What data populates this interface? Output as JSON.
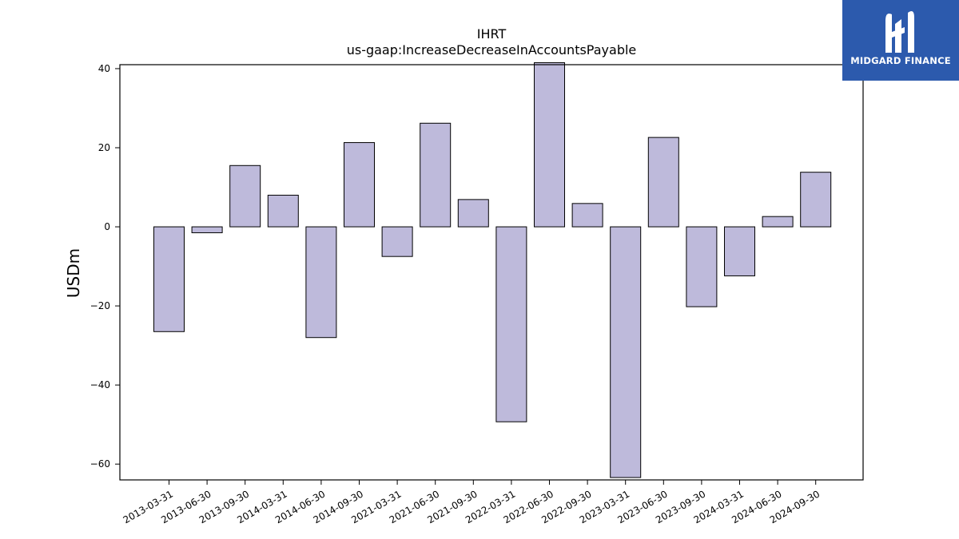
{
  "chart_data": {
    "type": "bar",
    "title": "IHRT",
    "subtitle": "us-gaap:IncreaseDecreaseInAccountsPayable",
    "xlabel": "",
    "ylabel": "USDm",
    "categories": [
      "2013-03-31",
      "2013-06-30",
      "2013-09-30",
      "2014-03-31",
      "2014-06-30",
      "2014-09-30",
      "2021-03-31",
      "2021-06-30",
      "2021-09-30",
      "2022-03-31",
      "2022-06-30",
      "2022-09-30",
      "2023-03-31",
      "2023-06-30",
      "2023-09-30",
      "2024-03-31",
      "2024-06-30",
      "2024-09-30"
    ],
    "values": [
      -26.5,
      -1.5,
      15.5,
      8.0,
      -28.0,
      21.3,
      -7.5,
      26.2,
      6.9,
      -49.3,
      41.5,
      5.9,
      -63.4,
      22.6,
      -20.2,
      -12.4,
      2.6,
      13.8
    ],
    "ylim": [
      -64,
      41
    ],
    "yticks": [
      -60,
      -40,
      -20,
      0,
      20,
      40
    ],
    "ytick_labels": [
      "−60",
      "−40",
      "−20",
      "0",
      "20",
      "40"
    ],
    "grid": false,
    "bar_color": "#bebadb",
    "bar_edge_color": "#000000"
  },
  "logo": {
    "text": "MIDGARD FINANCE",
    "background": "#2c5aad"
  }
}
